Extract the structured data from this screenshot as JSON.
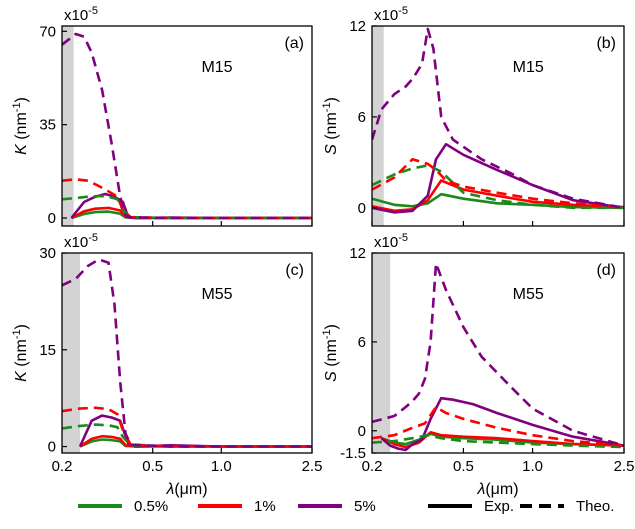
{
  "chart_data": [
    {
      "type": "line",
      "panel": "(a)",
      "sample": "M15",
      "ylabel_var": "K",
      "ylabel_unit": " (nm",
      "ylabel_exp": "-1",
      "ylabel_close": ")",
      "multiplier": "x10",
      "multiplier_exp": "-5",
      "xlabel_var": "λ",
      "xlabel_unit": "(μm)",
      "xlim": [
        0.2,
        2.5
      ],
      "ylim": [
        -3,
        72
      ],
      "xticks": [
        0.2,
        0.5,
        1.0,
        2.5
      ],
      "xtick_labels": [
        "",
        "",
        "",
        ""
      ],
      "yticks": [
        0,
        35,
        70
      ],
      "ytick_labels": [
        "0",
        "35",
        "70"
      ],
      "shaded_region": [
        0.2,
        0.225
      ],
      "series": [
        {
          "name": "0.5% Exp.",
          "color": "#1a8a1a",
          "dash": false,
          "x": [
            0.22,
            0.25,
            0.28,
            0.32,
            0.36,
            0.38,
            0.42,
            0.6,
            1.0,
            2.5
          ],
          "y": [
            0,
            1.5,
            2.2,
            2.4,
            1.6,
            0.2,
            0,
            0,
            0,
            0
          ]
        },
        {
          "name": "1% Exp.",
          "color": "#ff0000",
          "dash": false,
          "x": [
            0.22,
            0.25,
            0.28,
            0.32,
            0.36,
            0.38,
            0.42,
            0.6,
            1.0,
            2.5
          ],
          "y": [
            0,
            2.5,
            3.5,
            3.8,
            2.8,
            0.5,
            0,
            0,
            0,
            0
          ]
        },
        {
          "name": "5% Exp.",
          "color": "#800080",
          "dash": false,
          "x": [
            0.22,
            0.25,
            0.28,
            0.31,
            0.34,
            0.37,
            0.39,
            0.42,
            0.6,
            1.0,
            2.5
          ],
          "y": [
            0,
            6,
            8,
            9,
            8,
            6,
            0.5,
            0,
            0.2,
            0,
            0
          ]
        },
        {
          "name": "0.5% Theo.",
          "color": "#1a8a1a",
          "dash": true,
          "x": [
            0.2,
            0.23,
            0.26,
            0.29,
            0.32,
            0.35,
            0.37,
            0.4,
            0.6,
            1.0,
            2.5
          ],
          "y": [
            7,
            7.5,
            8,
            8.3,
            8,
            7,
            3,
            0.3,
            0,
            0,
            0
          ]
        },
        {
          "name": "1% Theo.",
          "color": "#ff0000",
          "dash": true,
          "x": [
            0.2,
            0.23,
            0.26,
            0.29,
            0.32,
            0.35,
            0.37,
            0.4,
            0.6,
            1.0,
            2.5
          ],
          "y": [
            14,
            14.5,
            14,
            12,
            10,
            8,
            3,
            0.3,
            0,
            0,
            0
          ]
        },
        {
          "name": "5% Theo.",
          "color": "#800080",
          "dash": true,
          "x": [
            0.2,
            0.23,
            0.25,
            0.27,
            0.3,
            0.33,
            0.36,
            0.38,
            0.4,
            0.6,
            1.0,
            2.5
          ],
          "y": [
            65,
            69,
            68,
            62,
            48,
            28,
            8,
            1,
            0.2,
            0,
            0,
            0
          ]
        }
      ]
    },
    {
      "type": "line",
      "panel": "(b)",
      "sample": "M15",
      "ylabel_var": "S",
      "ylabel_unit": " (nm",
      "ylabel_exp": "-1",
      "ylabel_close": ")",
      "multiplier": "x10",
      "multiplier_exp": "-5",
      "xlabel_var": "λ",
      "xlabel_unit": "(μm)",
      "xlim": [
        0.2,
        2.5
      ],
      "ylim": [
        -1.2,
        12
      ],
      "xticks": [
        0.2,
        0.5,
        1.0,
        2.5
      ],
      "xtick_labels": [
        "",
        "",
        "",
        ""
      ],
      "yticks": [
        0,
        6,
        12
      ],
      "ytick_labels": [
        "0",
        "6",
        "12"
      ],
      "shaded_region": [
        0.2,
        0.225
      ],
      "series": [
        {
          "name": "0.5% Exp.",
          "color": "#1a8a1a",
          "dash": false,
          "x": [
            0.2,
            0.25,
            0.3,
            0.35,
            0.4,
            0.5,
            0.7,
            1.0,
            1.5,
            2.5
          ],
          "y": [
            0.6,
            0.2,
            0.1,
            0.3,
            0.9,
            0.6,
            0.3,
            0.2,
            0.05,
            0
          ]
        },
        {
          "name": "1% Exp.",
          "color": "#ff0000",
          "dash": false,
          "x": [
            0.2,
            0.25,
            0.3,
            0.35,
            0.4,
            0.5,
            0.7,
            1.0,
            1.5,
            2.5
          ],
          "y": [
            0.1,
            -0.2,
            -0.1,
            0.5,
            1.8,
            1.2,
            0.8,
            0.4,
            0.2,
            0.05
          ]
        },
        {
          "name": "5% Exp.",
          "color": "#800080",
          "dash": false,
          "x": [
            0.2,
            0.25,
            0.3,
            0.35,
            0.38,
            0.42,
            0.5,
            0.7,
            1.0,
            1.5,
            2.5
          ],
          "y": [
            0,
            -0.3,
            -0.2,
            0.8,
            3.2,
            4.2,
            3.5,
            2.5,
            1.5,
            0.5,
            0
          ]
        },
        {
          "name": "0.5% Theo.",
          "color": "#1a8a1a",
          "dash": true,
          "x": [
            0.2,
            0.25,
            0.3,
            0.35,
            0.4,
            0.5,
            0.7,
            1.0,
            1.5,
            2.5
          ],
          "y": [
            1.5,
            2.2,
            2.6,
            2.8,
            2.4,
            1,
            0.5,
            0.2,
            0,
            0
          ]
        },
        {
          "name": "1% Theo.",
          "color": "#ff0000",
          "dash": true,
          "x": [
            0.2,
            0.25,
            0.3,
            0.35,
            0.38,
            0.42,
            0.5,
            0.7,
            1.0,
            1.5,
            2.5
          ],
          "y": [
            1.2,
            2,
            3.2,
            2.9,
            2.5,
            1.8,
            1.4,
            1,
            0.6,
            0.3,
            0
          ]
        },
        {
          "name": "5% Theo.",
          "color": "#800080",
          "dash": true,
          "x": [
            0.2,
            0.22,
            0.25,
            0.28,
            0.3,
            0.33,
            0.35,
            0.37,
            0.4,
            0.45,
            0.6,
            0.8,
            1.0,
            1.5,
            2.5
          ],
          "y": [
            4.5,
            6.5,
            7.5,
            8,
            8.5,
            9.5,
            11.8,
            10.5,
            6,
            4.5,
            3.2,
            2.3,
            1.5,
            0.6,
            0
          ]
        }
      ]
    },
    {
      "type": "line",
      "panel": "(c)",
      "sample": "M55",
      "ylabel_var": "K",
      "ylabel_unit": " (nm",
      "ylabel_exp": "-1",
      "ylabel_close": ")",
      "multiplier": "x10",
      "multiplier_exp": "-5",
      "xlabel_var": "λ",
      "xlabel_unit": "(μm)",
      "xlim": [
        0.2,
        2.5
      ],
      "ylim": [
        -1,
        30
      ],
      "xticks": [
        0.2,
        0.5,
        1.0,
        2.5
      ],
      "xtick_labels": [
        "0.2",
        "0.5",
        "1.0",
        "2.5"
      ],
      "yticks": [
        0,
        15,
        30
      ],
      "ytick_labels": [
        "0",
        "15",
        "30"
      ],
      "shaded_region": [
        0.2,
        0.24
      ],
      "series": [
        {
          "name": "0.5% Exp.",
          "color": "#1a8a1a",
          "dash": false,
          "x": [
            0.24,
            0.27,
            0.3,
            0.33,
            0.36,
            0.38,
            0.42,
            0.6,
            1.0,
            2.5
          ],
          "y": [
            0,
            0.8,
            1.1,
            1,
            0.8,
            0.1,
            0,
            0,
            0,
            0
          ]
        },
        {
          "name": "1% Exp.",
          "color": "#ff0000",
          "dash": false,
          "x": [
            0.24,
            0.27,
            0.3,
            0.33,
            0.36,
            0.38,
            0.42,
            0.6,
            1.0,
            2.5
          ],
          "y": [
            0,
            1.2,
            1.6,
            1.5,
            1.2,
            0.2,
            0,
            0.1,
            0,
            0
          ]
        },
        {
          "name": "5% Exp.",
          "color": "#800080",
          "dash": false,
          "x": [
            0.24,
            0.27,
            0.3,
            0.33,
            0.36,
            0.39,
            0.42,
            0.6,
            1.0,
            2.5
          ],
          "y": [
            0,
            4,
            4.8,
            4.5,
            4,
            0.5,
            0,
            0.2,
            0,
            0
          ]
        },
        {
          "name": "0.5% Theo.",
          "color": "#1a8a1a",
          "dash": true,
          "x": [
            0.2,
            0.24,
            0.28,
            0.32,
            0.35,
            0.37,
            0.4,
            0.6,
            1.0,
            2.5
          ],
          "y": [
            2.8,
            3.2,
            3.4,
            3.3,
            3,
            1.5,
            0.2,
            0,
            0,
            0
          ]
        },
        {
          "name": "1% Theo.",
          "color": "#ff0000",
          "dash": true,
          "x": [
            0.2,
            0.24,
            0.28,
            0.32,
            0.35,
            0.37,
            0.4,
            0.6,
            1.0,
            2.5
          ],
          "y": [
            5.5,
            5.9,
            6,
            5.8,
            5,
            2.5,
            0.3,
            0,
            0,
            0
          ]
        },
        {
          "name": "5% Theo.",
          "color": "#800080",
          "dash": true,
          "x": [
            0.2,
            0.23,
            0.26,
            0.29,
            0.32,
            0.34,
            0.36,
            0.38,
            0.4,
            0.6,
            1.0,
            2.5
          ],
          "y": [
            25,
            26,
            28,
            29,
            28.5,
            22,
            10,
            2,
            0.3,
            0,
            0,
            0
          ]
        }
      ]
    },
    {
      "type": "line",
      "panel": "(d)",
      "sample": "M55",
      "ylabel_var": "S",
      "ylabel_unit": " (nm",
      "ylabel_exp": "-1",
      "ylabel_close": ")",
      "multiplier": "x10",
      "multiplier_exp": "-5",
      "xlabel_var": "λ",
      "xlabel_unit": "(μm)",
      "xlim": [
        0.2,
        2.5
      ],
      "ylim": [
        -1.5,
        12
      ],
      "xticks": [
        0.2,
        0.5,
        1.0,
        2.5
      ],
      "xtick_labels": [
        "0.2",
        "0.5",
        "1.0",
        "2.5"
      ],
      "yticks": [
        -1.5,
        0,
        6,
        12
      ],
      "ytick_labels": [
        "-1.5",
        "0",
        "6",
        "12"
      ],
      "shaded_region": [
        0.2,
        0.24
      ],
      "series": [
        {
          "name": "0.5% Exp.",
          "color": "#1a8a1a",
          "dash": false,
          "x": [
            0.22,
            0.25,
            0.28,
            0.32,
            0.36,
            0.4,
            0.5,
            0.7,
            1.0,
            1.5,
            2.5
          ],
          "y": [
            -0.5,
            -0.8,
            -0.9,
            -0.6,
            -0.2,
            -0.4,
            -0.5,
            -0.6,
            -0.8,
            -0.9,
            -1
          ]
        },
        {
          "name": "1% Exp.",
          "color": "#ff0000",
          "dash": false,
          "x": [
            0.22,
            0.25,
            0.28,
            0.32,
            0.36,
            0.4,
            0.5,
            0.7,
            1.0,
            1.5,
            2.5
          ],
          "y": [
            -0.5,
            -0.9,
            -1.1,
            -0.8,
            -0.1,
            -0.3,
            -0.4,
            -0.5,
            -0.7,
            -0.9,
            -1
          ]
        },
        {
          "name": "5% Exp.",
          "color": "#800080",
          "dash": false,
          "x": [
            0.22,
            0.24,
            0.26,
            0.28,
            0.3,
            0.33,
            0.36,
            0.4,
            0.45,
            0.55,
            0.7,
            1.0,
            1.5,
            2.5
          ],
          "y": [
            -0.5,
            -1,
            -1.2,
            -1.3,
            -0.9,
            -0.6,
            0.8,
            2.2,
            2.1,
            1.8,
            1.2,
            0.4,
            -0.4,
            -1
          ]
        },
        {
          "name": "0.5% Theo.",
          "color": "#1a8a1a",
          "dash": true,
          "x": [
            0.2,
            0.25,
            0.3,
            0.35,
            0.4,
            0.5,
            0.7,
            1.0,
            1.5,
            2.5
          ],
          "y": [
            -0.8,
            -0.7,
            -0.5,
            -0.3,
            -0.5,
            -0.7,
            -0.8,
            -0.9,
            -1,
            -1.1
          ]
        },
        {
          "name": "1% Theo.",
          "color": "#ff0000",
          "dash": true,
          "x": [
            0.2,
            0.25,
            0.3,
            0.34,
            0.38,
            0.42,
            0.5,
            0.7,
            1.0,
            1.5,
            2.5
          ],
          "y": [
            -0.5,
            -0.3,
            0.2,
            0.5,
            1.6,
            1.2,
            0.8,
            0.2,
            -0.3,
            -0.7,
            -1
          ]
        },
        {
          "name": "5% Theo.",
          "color": "#800080",
          "dash": true,
          "x": [
            0.2,
            0.25,
            0.28,
            0.3,
            0.32,
            0.34,
            0.36,
            0.38,
            0.42,
            0.5,
            0.6,
            0.8,
            1.0,
            1.5,
            2.5
          ],
          "y": [
            0.6,
            1,
            1.6,
            2,
            2.5,
            3.5,
            6,
            11.3,
            9.5,
            7,
            5,
            3,
            1.5,
            0,
            -1
          ]
        }
      ]
    }
  ],
  "legend": {
    "entries": [
      {
        "label": "0.5%",
        "color": "#1a8a1a",
        "dash": false
      },
      {
        "label": "1%",
        "color": "#ff0000",
        "dash": false
      },
      {
        "label": "5%",
        "color": "#800080",
        "dash": false
      },
      {
        "label": "Exp.",
        "color": "#000000",
        "dash": false
      },
      {
        "label": "Theo.",
        "color": "#000000",
        "dash": true
      }
    ]
  }
}
